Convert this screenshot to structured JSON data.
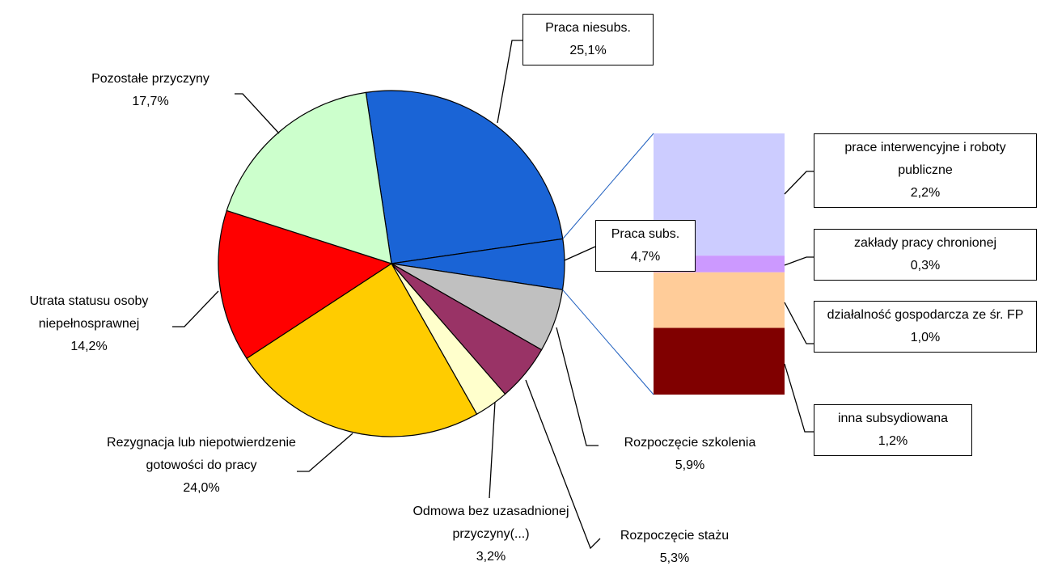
{
  "chart_data": {
    "type": "pie",
    "categories": [
      "Praca niesubs.",
      "Praca subs.",
      "Rozpoczęcie szkolenia",
      "Rozpoczęcie stażu",
      "Odmowa bez uzasadnionej przyczyny(...)",
      "Rezygnacja lub niepotwierdzenie gotowości do pracy",
      "Utrata statusu osoby niepełnosprawnej",
      "Pozostałe przyczyny"
    ],
    "values": [
      25.1,
      4.7,
      5.9,
      5.3,
      3.2,
      24.0,
      14.2,
      17.7
    ],
    "value_labels": [
      "25,1%",
      "4,7%",
      "5,9%",
      "5,3%",
      "3,2%",
      "24,0%",
      "14,2%",
      "17,7%"
    ],
    "colors": [
      "#1a64d6",
      "#1a64d6",
      "#c0c0c0",
      "#993366",
      "#ffffcc",
      "#ffcc00",
      "#ff0000",
      "#ccffcc"
    ],
    "breakdown": {
      "type": "stacked_bar",
      "categories": [
        "prace interwencyjne i roboty publiczne",
        "zakłady pracy chronionej",
        "działalność gospodarcza ze śr. FP",
        "inna subsydiowana"
      ],
      "values": [
        2.2,
        0.3,
        1.0,
        1.2
      ],
      "value_labels": [
        "2,2%",
        "0,3%",
        "1,0%",
        "1,2%"
      ],
      "colors": [
        "#ccccff",
        "#cc99ff",
        "#ffcc99",
        "#800000"
      ]
    }
  }
}
